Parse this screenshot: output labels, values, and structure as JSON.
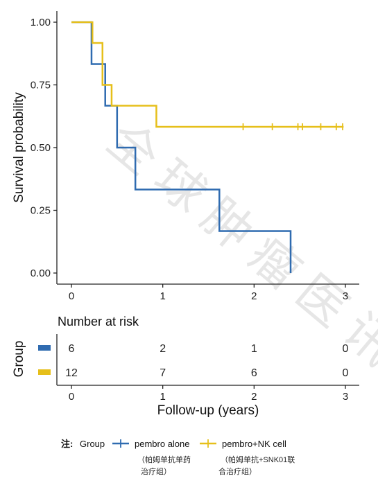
{
  "chart_data": [
    {
      "type": "line",
      "subtype": "kaplan-meier",
      "ylabel": "Survival probability",
      "xlim": [
        0,
        3
      ],
      "ylim": [
        0,
        1
      ],
      "x_ticks": [
        "0",
        "1",
        "2",
        "3"
      ],
      "y_ticks": [
        "0.00",
        "0.25",
        "0.50",
        "0.75",
        "1.00"
      ],
      "grid": false,
      "series": [
        {
          "name": "pembro alone",
          "color": "#2f6bb0",
          "steps": [
            [
              0,
              1.0
            ],
            [
              0.22,
              0.833
            ],
            [
              0.37,
              0.667
            ],
            [
              0.5,
              0.5
            ],
            [
              0.7,
              0.333
            ],
            [
              1.62,
              0.167
            ],
            [
              2.4,
              0.0
            ]
          ],
          "end_x": 2.4,
          "censor_x": []
        },
        {
          "name": "pembro+NK cell",
          "color": "#e6bf1a",
          "steps": [
            [
              0,
              1.0
            ],
            [
              0.23,
              0.917
            ],
            [
              0.34,
              0.75
            ],
            [
              0.44,
              0.667
            ],
            [
              0.93,
              0.583
            ]
          ],
          "end_x": 2.98,
          "censor_x": [
            1.88,
            2.2,
            2.48,
            2.53,
            2.73,
            2.9,
            2.97
          ]
        }
      ]
    },
    {
      "type": "table",
      "title": "Number at risk",
      "xlabel": "Follow-up (years)",
      "ylabel": "Group",
      "x_ticks": [
        "0",
        "1",
        "2",
        "3"
      ],
      "times": [
        0,
        1,
        2,
        3
      ],
      "rows": [
        {
          "color": "#2f6bb0",
          "values": [
            "6",
            "2",
            "1",
            "0"
          ]
        },
        {
          "color": "#e6bf1a",
          "values": [
            "12",
            "7",
            "6",
            "0"
          ]
        }
      ]
    }
  ],
  "legend": {
    "note_label": "注:",
    "group_label": "Group",
    "items": [
      {
        "label": "pembro alone",
        "sub_lines": [
          "（帕姆单抗单药",
          "治疗组）"
        ],
        "color": "#2f6bb0"
      },
      {
        "label": "pembro+NK cell",
        "sub_lines": [
          "（帕姆单抗+SNK01联",
          "合治疗组）"
        ],
        "color": "#e6bf1a"
      }
    ]
  },
  "watermark": [
    "全",
    "球",
    "肿",
    "瘤",
    "医",
    "讯"
  ]
}
